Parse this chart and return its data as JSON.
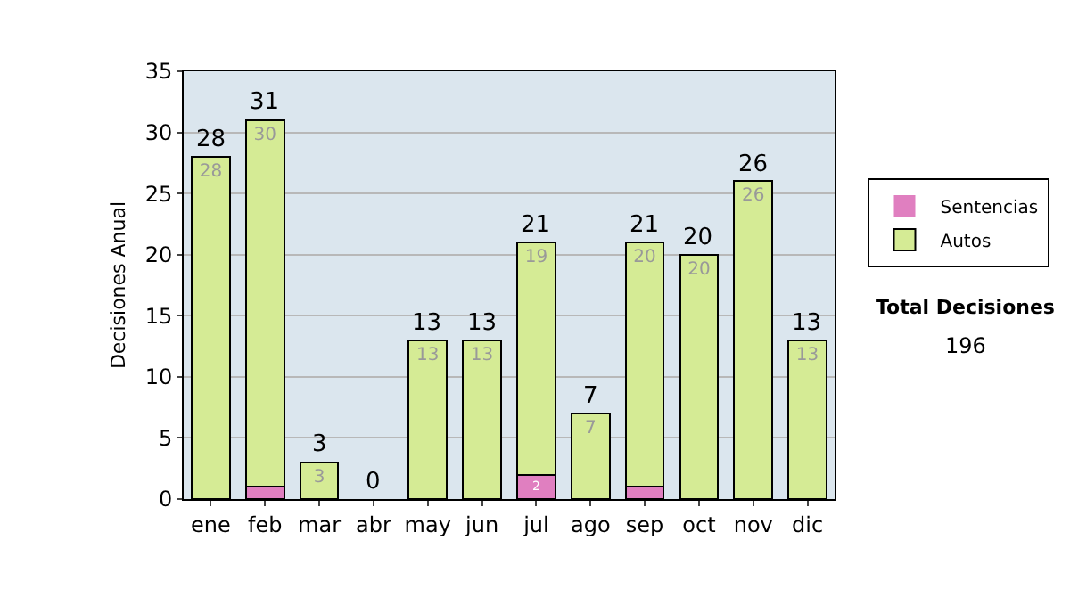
{
  "chart_data": {
    "type": "bar",
    "stacked": true,
    "ylabel": "Decisiones Anual",
    "categories": [
      "ene",
      "feb",
      "mar",
      "abr",
      "may",
      "jun",
      "jul",
      "ago",
      "sep",
      "oct",
      "nov",
      "dic"
    ],
    "series": [
      {
        "name": "Sentencias",
        "color": "#e07fc0",
        "values": [
          0,
          1,
          0,
          0,
          0,
          0,
          2,
          0,
          1,
          0,
          0,
          0
        ],
        "value_labels": [
          null,
          null,
          null,
          null,
          null,
          null,
          "2",
          null,
          null,
          null,
          null,
          null
        ]
      },
      {
        "name": "Autos",
        "color": "#d5eb95",
        "values": [
          28,
          30,
          3,
          0,
          13,
          13,
          19,
          7,
          20,
          20,
          26,
          13
        ],
        "value_labels": [
          "28",
          "30",
          "3",
          null,
          "13",
          "13",
          "19",
          "7",
          "20",
          "20",
          "26",
          "13"
        ]
      }
    ],
    "totals": [
      "28",
      "31",
      "3",
      "0",
      "13",
      "13",
      "21",
      "7",
      "21",
      "20",
      "26",
      "13"
    ],
    "ylim": [
      0,
      35
    ],
    "yticks": [
      0,
      5,
      10,
      15,
      20,
      25,
      30,
      35
    ],
    "grid": "y",
    "legend": "right",
    "annotations": [
      "Total Decisiones",
      "196"
    ]
  }
}
